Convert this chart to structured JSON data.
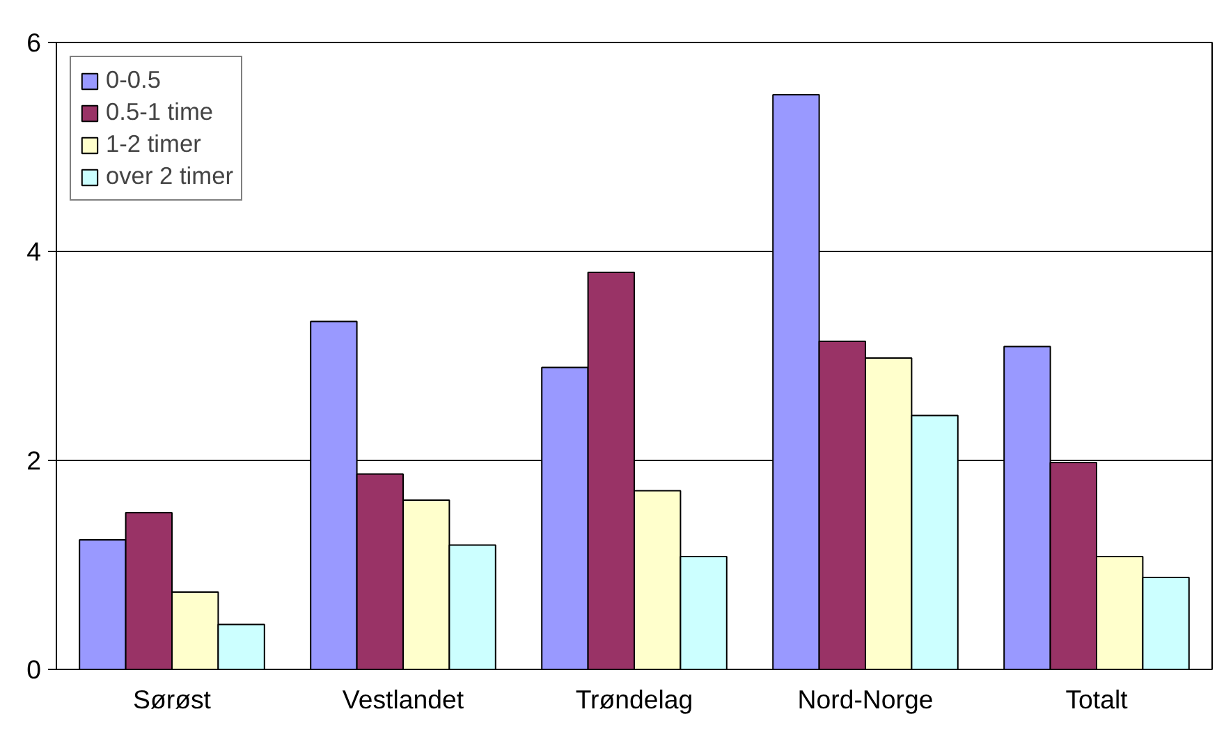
{
  "chart_data": {
    "type": "bar",
    "categories": [
      "Sørøst",
      "Vestlandet",
      "Trøndelag",
      "Nord-Norge",
      "Totalt"
    ],
    "series": [
      {
        "name": "0-0.5",
        "color": "#9999ff",
        "values": [
          1.24,
          3.33,
          2.89,
          5.5,
          3.09
        ]
      },
      {
        "name": "0.5-1 time",
        "color": "#993366",
        "values": [
          1.5,
          1.87,
          3.8,
          3.14,
          1.98
        ]
      },
      {
        "name": "1-2 timer",
        "color": "#ffffcc",
        "values": [
          0.74,
          1.62,
          1.71,
          2.98,
          1.08
        ]
      },
      {
        "name": "over 2 timer",
        "color": "#ccffff",
        "values": [
          0.43,
          1.19,
          1.08,
          2.43,
          0.88
        ]
      }
    ],
    "ylim": [
      0,
      6
    ],
    "yticks": [
      0,
      2,
      4,
      6
    ],
    "grid": "y",
    "legend": "top left"
  }
}
